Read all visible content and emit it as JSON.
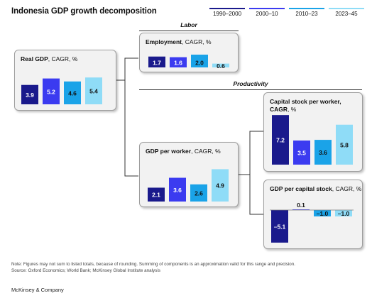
{
  "title": "Indonesia GDP growth decomposition",
  "legend": [
    {
      "label": "1990–2000",
      "color": "#1a1a8c"
    },
    {
      "label": "2000–10",
      "color": "#3b3bf0"
    },
    {
      "label": "2010–23",
      "color": "#1aa3e8"
    },
    {
      "label": "2023–45",
      "color": "#8fdcf7"
    }
  ],
  "sections": {
    "labor": "Labor",
    "productivity": "Productivity"
  },
  "chart_data": [
    {
      "type": "bar",
      "title": "Real GDP",
      "unit": ", CAGR, %",
      "categories": [
        "1990–2000",
        "2000–10",
        "2010–23",
        "2023–45"
      ],
      "values": [
        3.9,
        5.2,
        4.6,
        5.4
      ],
      "labels": [
        "3.9",
        "5.2",
        "4.6",
        "5.4"
      ]
    },
    {
      "type": "bar",
      "title": "Employment",
      "unit": ", CAGR, %",
      "categories": [
        "1990–2000",
        "2000–10",
        "2010–23",
        "2023–45"
      ],
      "values": [
        1.7,
        1.6,
        2.0,
        0.6
      ],
      "labels": [
        "1.7",
        "1.6",
        "2.0",
        "0.6"
      ]
    },
    {
      "type": "bar",
      "title": "GDP per worker",
      "unit": ", CAGR, %",
      "categories": [
        "1990–2000",
        "2000–10",
        "2010–23",
        "2023–45"
      ],
      "values": [
        2.1,
        3.6,
        2.6,
        4.9
      ],
      "labels": [
        "2.1",
        "3.6",
        "2.6",
        "4.9"
      ]
    },
    {
      "type": "bar",
      "title": "Capital stock per worker,",
      "title2": "CAGR",
      "unit": ", %",
      "categories": [
        "1990–2000",
        "2000–10",
        "2010–23",
        "2023–45"
      ],
      "values": [
        7.2,
        3.5,
        3.6,
        5.8
      ],
      "labels": [
        "7.2",
        "3.5",
        "3.6",
        "5.8"
      ]
    },
    {
      "type": "bar",
      "title": "GDP per capital stock",
      "unit": ", CAGR, %",
      "categories": [
        "1990–2000",
        "2000–10",
        "2010–23",
        "2023–45"
      ],
      "values": [
        -5.1,
        0.1,
        -1.0,
        -1.0
      ],
      "labels": [
        "–5.1",
        "0.1",
        "–1.0",
        "–1.0"
      ]
    }
  ],
  "note": "Note: Figures may not sum to listed totals, because of rounding. Summing of components is an approximation valid for this range and precision.",
  "source": "Source: Oxford Economics; World Bank; McKinsey Global Institute analysis",
  "brand": "McKinsey & Company"
}
